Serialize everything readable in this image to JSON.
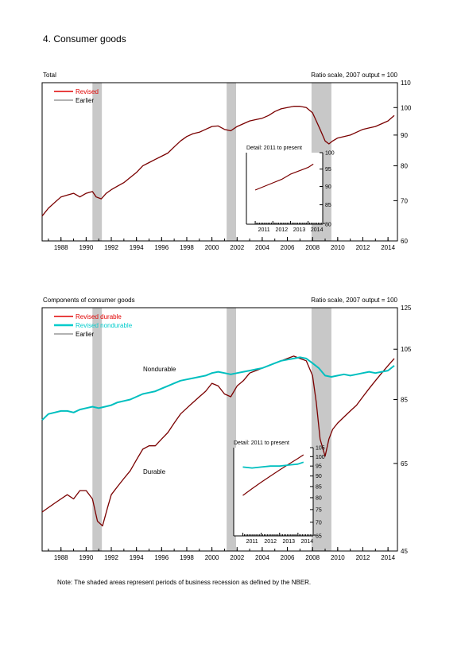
{
  "page_title": "4. Consumer goods",
  "note": "Note: The shaded areas represent periods of business recession as defined by the NBER.",
  "colors": {
    "revised": "#7a0000",
    "revised_legend": "#e00000",
    "earlier": "#999999",
    "nondurable": "#00bfbf",
    "recession": "#c8c8c8"
  },
  "x_ticks": [
    "1988",
    "1990",
    "1992",
    "1994",
    "1996",
    "1998",
    "2000",
    "2002",
    "2004",
    "2006",
    "2008",
    "2010",
    "2012",
    "2014"
  ],
  "recessions": [
    [
      1990.5,
      1991.25
    ],
    [
      2001.17,
      2001.92
    ],
    [
      2007.92,
      2009.5
    ]
  ],
  "chart_data": [
    {
      "type": "line",
      "title": "Total",
      "scale_note": "Ratio scale, 2007 output = 100",
      "log_scale": true,
      "xlim": [
        1986.5,
        2014.75
      ],
      "ylim": [
        60,
        110
      ],
      "y_ticks": [
        60,
        70,
        80,
        90,
        100,
        110
      ],
      "legend": [
        "Revised",
        "Earlier"
      ],
      "series": [
        {
          "name": "Revised",
          "x": [
            1986.5,
            1987,
            1987.5,
            1988,
            1988.5,
            1989,
            1989.5,
            1990,
            1990.5,
            1990.8,
            1991.2,
            1991.6,
            1992,
            1992.5,
            1993,
            1993.5,
            1994,
            1994.5,
            1995,
            1995.5,
            1996,
            1996.5,
            1997,
            1997.5,
            1998,
            1998.5,
            1999,
            1999.5,
            2000,
            2000.5,
            2001,
            2001.5,
            2002,
            2002.5,
            2003,
            2003.5,
            2004,
            2004.5,
            2005,
            2005.5,
            2006,
            2006.5,
            2007,
            2007.5,
            2008,
            2008.3,
            2008.6,
            2009,
            2009.3,
            2009.6,
            2010,
            2010.5,
            2011,
            2011.5,
            2012,
            2012.5,
            2013,
            2013.5,
            2014,
            2014.5
          ],
          "values": [
            66,
            68,
            69.5,
            71,
            71.5,
            72,
            71,
            72,
            72.5,
            71,
            70.5,
            72,
            73,
            74,
            75,
            76.5,
            78,
            80,
            81,
            82,
            83,
            84,
            86,
            88,
            89.5,
            90.5,
            91,
            92,
            93,
            93.2,
            92,
            91.5,
            93,
            94,
            95,
            95.5,
            96,
            97,
            98.5,
            99.5,
            100,
            100.5,
            100.5,
            100,
            98,
            95,
            92,
            88,
            87,
            88,
            89,
            89.5,
            90,
            91,
            92,
            92.5,
            93,
            94,
            95,
            97
          ]
        }
      ],
      "inset": {
        "title": "Detail: 2011 to present",
        "xlim": [
          2010.5,
          2014.83
        ],
        "ylim": [
          80,
          100
        ],
        "y_ticks": [
          80,
          85,
          90,
          95,
          100
        ],
        "x_ticks": [
          "2011",
          "2012",
          "2013",
          "2014"
        ],
        "series": [
          {
            "name": "Revised",
            "x": [
              2011,
              2011.5,
              2012,
              2012.5,
              2013,
              2013.5,
              2014,
              2014.3
            ],
            "values": [
              89,
              90,
              91,
              92,
              93.5,
              94.5,
              95.5,
              96.5
            ]
          }
        ]
      }
    },
    {
      "type": "line",
      "title": "Components of consumer goods",
      "scale_note": "Ratio scale, 2007 output = 100",
      "log_scale": true,
      "xlim": [
        1986.5,
        2014.75
      ],
      "ylim": [
        45,
        125
      ],
      "y_ticks": [
        45,
        65,
        85,
        105,
        125
      ],
      "legend": [
        "Revised durable",
        "Revised nondurable",
        "Earlier"
      ],
      "annotations": [
        "Nondurable",
        "Durable"
      ],
      "series": [
        {
          "name": "Revised durable",
          "x": [
            1986.5,
            1987,
            1987.5,
            1988,
            1988.5,
            1989,
            1989.5,
            1990,
            1990.5,
            1990.9,
            1991.3,
            1991.7,
            1992,
            1992.5,
            1993,
            1993.5,
            1994,
            1994.5,
            1995,
            1995.5,
            1996,
            1996.5,
            1997,
            1997.5,
            1998,
            1998.5,
            1999,
            1999.5,
            2000,
            2000.5,
            2001,
            2001.5,
            2002,
            2002.5,
            2003,
            2003.5,
            2004,
            2004.5,
            2005,
            2005.5,
            2006,
            2006.5,
            2007,
            2007.5,
            2008,
            2008.3,
            2008.6,
            2009,
            2009.3,
            2009.6,
            2010,
            2010.5,
            2011,
            2011.5,
            2012,
            2012.5,
            2013,
            2013.5,
            2014,
            2014.5
          ],
          "values": [
            53,
            54,
            55,
            56,
            57,
            56,
            58,
            58,
            56,
            51,
            50,
            54,
            57,
            59,
            61,
            63,
            66,
            69,
            70,
            70,
            72,
            74,
            77,
            80,
            82,
            84,
            86,
            88,
            91,
            90,
            87,
            86,
            90,
            92,
            95,
            96,
            97,
            98,
            99,
            100,
            101,
            102,
            101,
            100,
            94,
            84,
            72,
            67,
            72,
            75,
            77,
            79,
            81,
            83,
            86,
            89,
            92,
            95,
            98,
            101
          ]
        },
        {
          "name": "Revised nondurable",
          "x": [
            1986.5,
            1987,
            1987.5,
            1988,
            1988.5,
            1989,
            1989.5,
            1990,
            1990.5,
            1991,
            1991.5,
            1992,
            1992.5,
            1993,
            1993.5,
            1994,
            1994.5,
            1995,
            1995.5,
            1996,
            1996.5,
            1997,
            1997.5,
            1998,
            1998.5,
            1999,
            1999.5,
            2000,
            2000.5,
            2001,
            2001.5,
            2002,
            2002.5,
            2003,
            2003.5,
            2004,
            2004.5,
            2005,
            2005.5,
            2006,
            2006.5,
            2007,
            2007.5,
            2008,
            2008.5,
            2009,
            2009.5,
            2010,
            2010.5,
            2011,
            2011.5,
            2012,
            2012.5,
            2013,
            2013.5,
            2014,
            2014.5
          ],
          "values": [
            78,
            80,
            80.5,
            81,
            81,
            80.5,
            81.5,
            82,
            82.5,
            82,
            82.5,
            83,
            84,
            84.5,
            85,
            86,
            87,
            87.5,
            88,
            89,
            90,
            91,
            92,
            92.5,
            93,
            93.5,
            94,
            95,
            95.5,
            95,
            94.5,
            95,
            95.5,
            96,
            96.5,
            97,
            98,
            99,
            100,
            100.5,
            101,
            101.5,
            101,
            99,
            97,
            94,
            93.5,
            94,
            94.5,
            94,
            94.5,
            95,
            95.5,
            95,
            95.5,
            96,
            98
          ]
        }
      ],
      "inset": {
        "title": "Detail: 2011 to present",
        "xlim": [
          2010.5,
          2014.83
        ],
        "ylim": [
          65,
          105
        ],
        "y_ticks": [
          65,
          70,
          75,
          80,
          85,
          90,
          95,
          100,
          105
        ],
        "x_ticks": [
          "2011",
          "2012",
          "2013",
          "2014"
        ],
        "series": [
          {
            "name": "Revised durable",
            "x": [
              2011,
              2011.5,
              2012,
              2012.5,
              2013,
              2013.5,
              2014,
              2014.3
            ],
            "values": [
              81,
              84,
              87,
              90,
              93,
              96,
              99,
              101
            ]
          },
          {
            "name": "Revised nondurable",
            "x": [
              2011,
              2011.5,
              2012,
              2012.5,
              2013,
              2013.5,
              2014,
              2014.3
            ],
            "values": [
              94.5,
              94,
              94.5,
              95,
              95,
              95.5,
              96,
              97
            ]
          }
        ]
      }
    }
  ]
}
